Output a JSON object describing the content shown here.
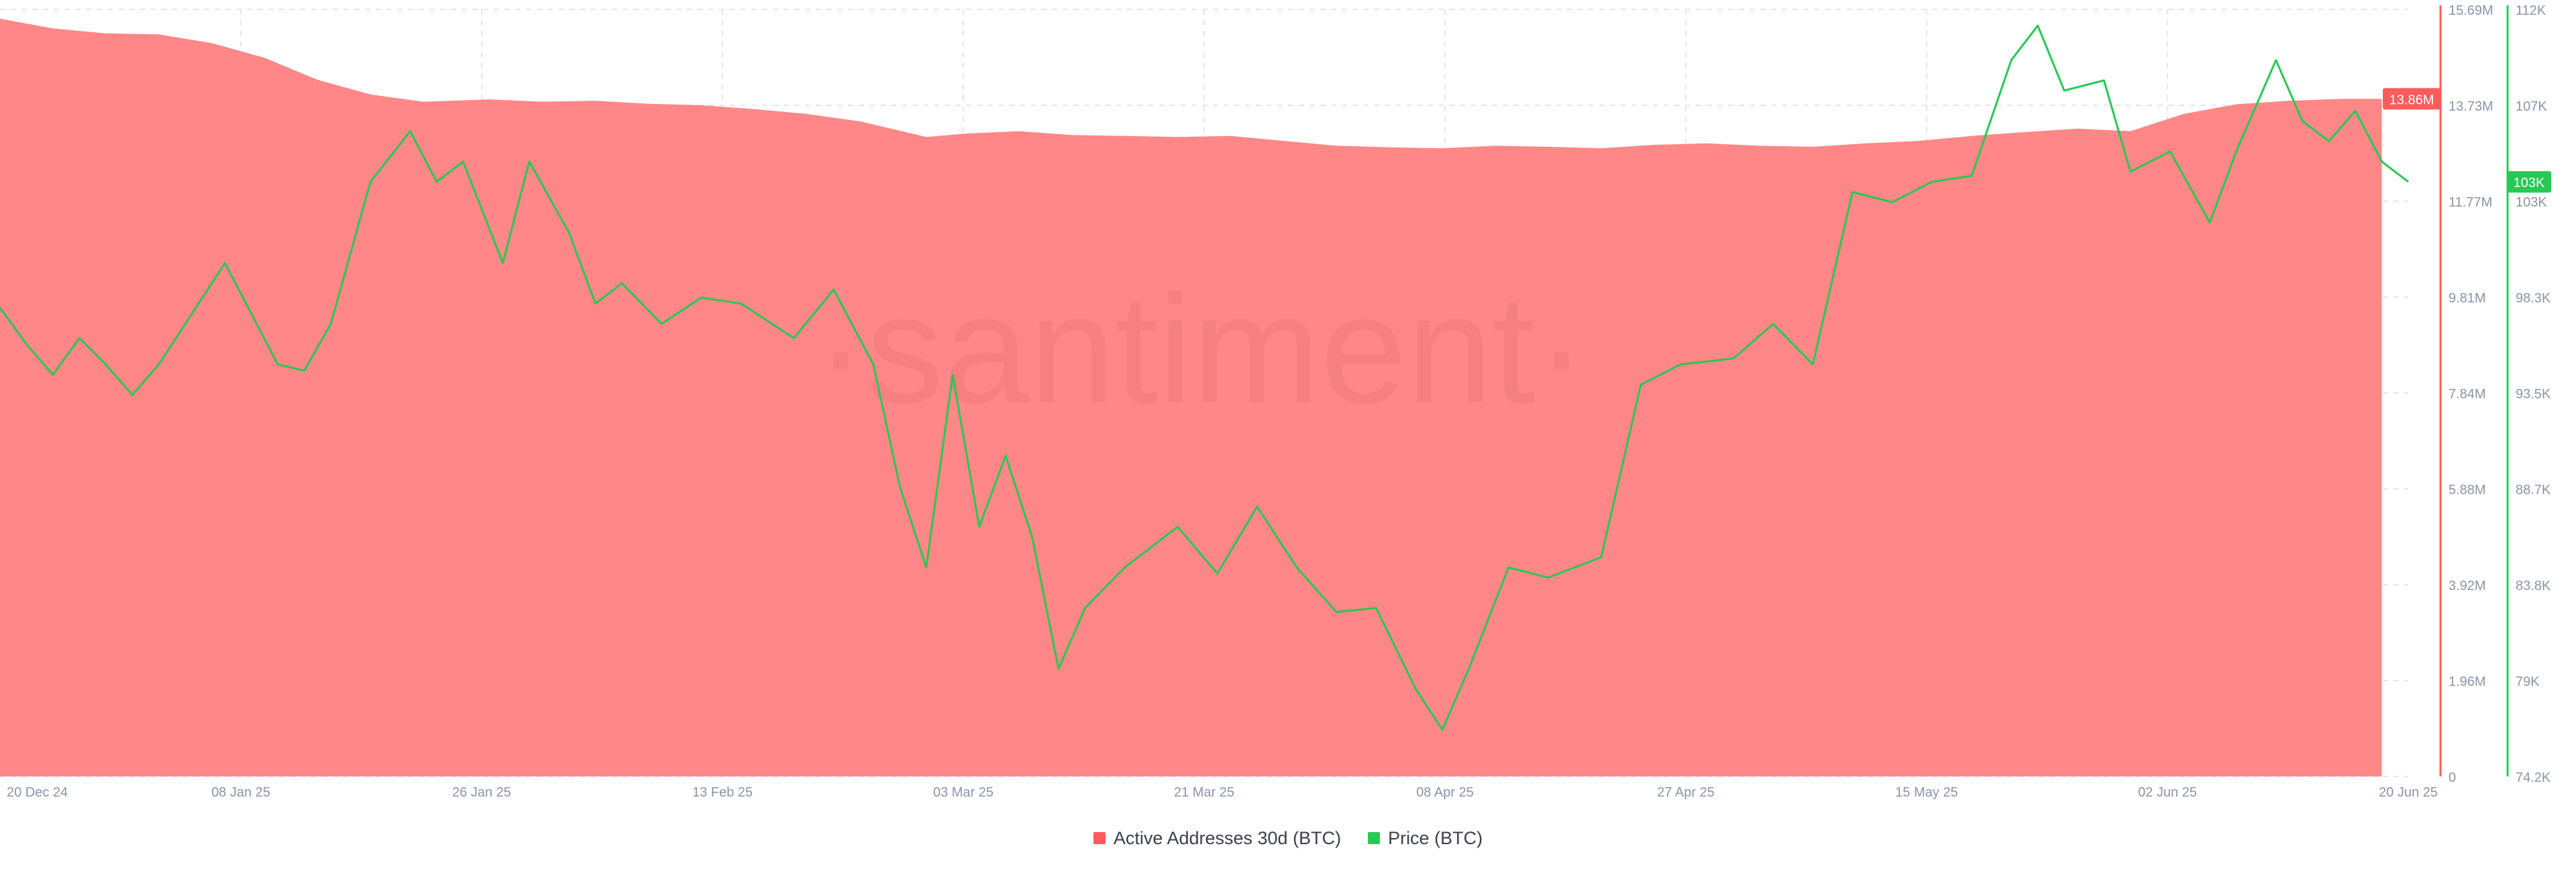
{
  "chart_data": {
    "type": "area",
    "watermark": "·santiment·",
    "x_start": "2024-12-20",
    "x_end": "2025-06-20",
    "x_ticks": [
      "20 Dec 24",
      "08 Jan 25",
      "26 Jan 25",
      "13 Feb 25",
      "03 Mar 25",
      "21 Mar 25",
      "08 Apr 25",
      "27 Apr 25",
      "15 May 25",
      "02 Jun 25",
      "20 Jun 25"
    ],
    "y_left": {
      "ylim": [
        0,
        15690000
      ],
      "ticks": [
        "0",
        "1.96M",
        "3.92M",
        "5.88M",
        "7.84M",
        "9.81M",
        "11.77M",
        "13.73M",
        "15.69M"
      ],
      "current": "13.86M",
      "color": "#ff5b5b"
    },
    "y_right": {
      "ylim": [
        74200,
        112000
      ],
      "ticks": [
        "74.2K",
        "79K",
        "83.8K",
        "88.7K",
        "93.5K",
        "98.3K",
        "103K",
        "107K",
        "112K"
      ],
      "current": "103K",
      "color": "#26c953"
    },
    "series": [
      {
        "name": "Active Addresses 30d (BTC)",
        "type": "area",
        "axis": "left",
        "color": "#ff8787",
        "points": [
          [
            "2024-12-20",
            15500000
          ],
          [
            "2024-12-24",
            15300000
          ],
          [
            "2024-12-28",
            15200000
          ],
          [
            "2025-01-01",
            15180000
          ],
          [
            "2025-01-05",
            15000000
          ],
          [
            "2025-01-09",
            14700000
          ],
          [
            "2025-01-13",
            14250000
          ],
          [
            "2025-01-17",
            13950000
          ],
          [
            "2025-01-21",
            13800000
          ],
          [
            "2025-01-26",
            13850000
          ],
          [
            "2025-01-30",
            13800000
          ],
          [
            "2025-02-03",
            13820000
          ],
          [
            "2025-02-07",
            13760000
          ],
          [
            "2025-02-11",
            13730000
          ],
          [
            "2025-02-15",
            13650000
          ],
          [
            "2025-02-19",
            13550000
          ],
          [
            "2025-02-23",
            13400000
          ],
          [
            "2025-02-28",
            13080000
          ],
          [
            "2025-03-03",
            13150000
          ],
          [
            "2025-03-07",
            13200000
          ],
          [
            "2025-03-11",
            13120000
          ],
          [
            "2025-03-15",
            13100000
          ],
          [
            "2025-03-19",
            13080000
          ],
          [
            "2025-03-23",
            13100000
          ],
          [
            "2025-03-27",
            13000000
          ],
          [
            "2025-03-31",
            12900000
          ],
          [
            "2025-04-04",
            12870000
          ],
          [
            "2025-04-08",
            12850000
          ],
          [
            "2025-04-12",
            12900000
          ],
          [
            "2025-04-16",
            12880000
          ],
          [
            "2025-04-20",
            12850000
          ],
          [
            "2025-04-24",
            12920000
          ],
          [
            "2025-04-28",
            12950000
          ],
          [
            "2025-05-02",
            12900000
          ],
          [
            "2025-05-06",
            12880000
          ],
          [
            "2025-05-10",
            12950000
          ],
          [
            "2025-05-14",
            13000000
          ],
          [
            "2025-05-18",
            13100000
          ],
          [
            "2025-05-22",
            13180000
          ],
          [
            "2025-05-26",
            13250000
          ],
          [
            "2025-05-30",
            13200000
          ],
          [
            "2025-06-03",
            13550000
          ],
          [
            "2025-06-07",
            13750000
          ],
          [
            "2025-06-11",
            13820000
          ],
          [
            "2025-06-15",
            13860000
          ],
          [
            "2025-06-18",
            13860000
          ]
        ]
      },
      {
        "name": "Price (BTC)",
        "type": "line",
        "axis": "right",
        "color": "#26c953",
        "points": [
          [
            "2024-12-20",
            97300
          ],
          [
            "2024-12-22",
            95500
          ],
          [
            "2024-12-24",
            94000
          ],
          [
            "2024-12-26",
            95800
          ],
          [
            "2024-12-28",
            94500
          ],
          [
            "2024-12-30",
            93000
          ],
          [
            "2025-01-01",
            94500
          ],
          [
            "2025-01-03",
            96500
          ],
          [
            "2025-01-06",
            99500
          ],
          [
            "2025-01-08",
            97000
          ],
          [
            "2025-01-10",
            94500
          ],
          [
            "2025-01-12",
            94200
          ],
          [
            "2025-01-14",
            96500
          ],
          [
            "2025-01-17",
            103500
          ],
          [
            "2025-01-20",
            106000
          ],
          [
            "2025-01-22",
            103500
          ],
          [
            "2025-01-24",
            104500
          ],
          [
            "2025-01-27",
            99500
          ],
          [
            "2025-01-29",
            104500
          ],
          [
            "2025-02-01",
            101000
          ],
          [
            "2025-02-03",
            97500
          ],
          [
            "2025-02-05",
            98500
          ],
          [
            "2025-02-08",
            96500
          ],
          [
            "2025-02-11",
            97800
          ],
          [
            "2025-02-14",
            97500
          ],
          [
            "2025-02-18",
            95800
          ],
          [
            "2025-02-21",
            98200
          ],
          [
            "2025-02-24",
            94500
          ],
          [
            "2025-02-26",
            88500
          ],
          [
            "2025-02-28",
            84500
          ],
          [
            "2025-03-02",
            94000
          ],
          [
            "2025-03-04",
            86500
          ],
          [
            "2025-03-06",
            90000
          ],
          [
            "2025-03-08",
            86000
          ],
          [
            "2025-03-10",
            79500
          ],
          [
            "2025-03-12",
            82500
          ],
          [
            "2025-03-15",
            84500
          ],
          [
            "2025-03-19",
            86500
          ],
          [
            "2025-03-22",
            84200
          ],
          [
            "2025-03-25",
            87500
          ],
          [
            "2025-03-28",
            84500
          ],
          [
            "2025-03-31",
            82300
          ],
          [
            "2025-04-03",
            82500
          ],
          [
            "2025-04-06",
            78500
          ],
          [
            "2025-04-08",
            76500
          ],
          [
            "2025-04-10",
            79500
          ],
          [
            "2025-04-13",
            84500
          ],
          [
            "2025-04-16",
            84000
          ],
          [
            "2025-04-20",
            85000
          ],
          [
            "2025-04-23",
            93500
          ],
          [
            "2025-04-26",
            94500
          ],
          [
            "2025-04-30",
            94800
          ],
          [
            "2025-05-03",
            96500
          ],
          [
            "2025-05-06",
            94500
          ],
          [
            "2025-05-09",
            103000
          ],
          [
            "2025-05-12",
            102500
          ],
          [
            "2025-05-15",
            103500
          ],
          [
            "2025-05-18",
            103800
          ],
          [
            "2025-05-21",
            109500
          ],
          [
            "2025-05-23",
            111200
          ],
          [
            "2025-05-25",
            108000
          ],
          [
            "2025-05-28",
            108500
          ],
          [
            "2025-05-30",
            104000
          ],
          [
            "2025-06-02",
            105000
          ],
          [
            "2025-06-05",
            101500
          ],
          [
            "2025-06-07",
            105000
          ],
          [
            "2025-06-10",
            109500
          ],
          [
            "2025-06-12",
            106500
          ],
          [
            "2025-06-14",
            105500
          ],
          [
            "2025-06-16",
            107000
          ],
          [
            "2025-06-18",
            104500
          ],
          [
            "2025-06-20",
            103500
          ]
        ]
      }
    ],
    "grid": true,
    "legend_position": "bottom-center"
  }
}
